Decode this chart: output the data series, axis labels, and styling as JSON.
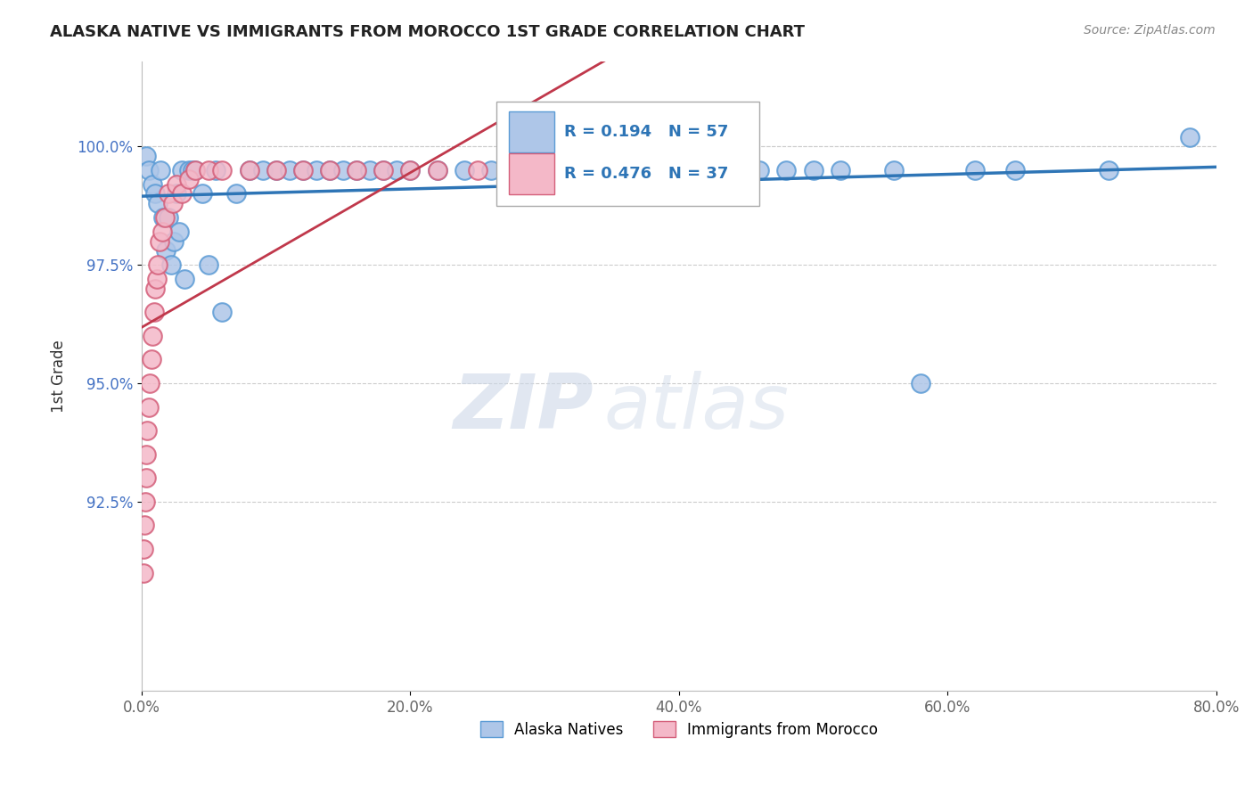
{
  "title": "ALASKA NATIVE VS IMMIGRANTS FROM MOROCCO 1ST GRADE CORRELATION CHART",
  "source_text": "Source: ZipAtlas.com",
  "ylabel": "1st Grade",
  "xlabel": "",
  "xlim": [
    0.0,
    80.0
  ],
  "ylim": [
    88.5,
    101.8
  ],
  "yticks": [
    92.5,
    95.0,
    97.5,
    100.0
  ],
  "ytick_labels": [
    "92.5%",
    "95.0%",
    "97.5%",
    "100.0%"
  ],
  "xticks": [
    0.0,
    20.0,
    40.0,
    60.0,
    80.0
  ],
  "xtick_labels": [
    "0.0%",
    "20.0%",
    "40.0%",
    "60.0%",
    "80.0%"
  ],
  "blue_color": "#aec6e8",
  "blue_edge_color": "#5b9bd5",
  "pink_color": "#f4b8c8",
  "pink_edge_color": "#d45f7a",
  "blue_line_color": "#2e75b6",
  "pink_line_color": "#c0384b",
  "watermark_zip": "ZIP",
  "watermark_atlas": "atlas",
  "legend_label_blue": "Alaska Natives",
  "legend_label_pink": "Immigrants from Morocco",
  "legend_R_blue": "R = 0.194",
  "legend_N_blue": "N = 57",
  "legend_R_pink": "R = 0.476",
  "legend_N_pink": "N = 37",
  "blue_scatter_x": [
    0.3,
    0.5,
    0.8,
    1.0,
    1.2,
    1.4,
    1.6,
    1.8,
    2.0,
    2.2,
    2.4,
    2.6,
    2.8,
    3.0,
    3.2,
    3.5,
    3.8,
    4.0,
    4.5,
    5.0,
    5.5,
    6.0,
    7.0,
    8.0,
    9.0,
    10.0,
    11.0,
    12.0,
    13.0,
    14.0,
    15.0,
    16.0,
    17.0,
    18.0,
    19.0,
    20.0,
    22.0,
    24.0,
    26.0,
    28.0,
    30.0,
    32.0,
    34.0,
    36.0,
    38.0,
    42.0,
    44.0,
    46.0,
    48.0,
    50.0,
    52.0,
    56.0,
    58.0,
    62.0,
    65.0,
    72.0,
    78.0
  ],
  "blue_scatter_y": [
    99.8,
    99.5,
    99.2,
    99.0,
    98.8,
    99.5,
    98.5,
    97.8,
    98.5,
    97.5,
    98.0,
    99.0,
    98.2,
    99.5,
    97.2,
    99.5,
    99.5,
    99.5,
    99.0,
    97.5,
    99.5,
    96.5,
    99.0,
    99.5,
    99.5,
    99.5,
    99.5,
    99.5,
    99.5,
    99.5,
    99.5,
    99.5,
    99.5,
    99.5,
    99.5,
    99.5,
    99.5,
    99.5,
    99.5,
    99.5,
    99.5,
    99.5,
    99.5,
    99.5,
    99.5,
    99.5,
    99.5,
    99.5,
    99.5,
    99.5,
    99.5,
    99.5,
    95.0,
    99.5,
    99.5,
    99.5,
    100.2
  ],
  "pink_scatter_x": [
    0.1,
    0.15,
    0.2,
    0.25,
    0.3,
    0.35,
    0.4,
    0.5,
    0.6,
    0.7,
    0.8,
    0.9,
    1.0,
    1.1,
    1.2,
    1.3,
    1.5,
    1.7,
    2.0,
    2.3,
    2.6,
    3.0,
    3.5,
    4.0,
    5.0,
    6.0,
    8.0,
    10.0,
    12.0,
    14.0,
    16.0,
    18.0,
    20.0,
    22.0,
    25.0,
    30.0,
    35.0
  ],
  "pink_scatter_y": [
    91.0,
    91.5,
    92.0,
    92.5,
    93.0,
    93.5,
    94.0,
    94.5,
    95.0,
    95.5,
    96.0,
    96.5,
    97.0,
    97.2,
    97.5,
    98.0,
    98.2,
    98.5,
    99.0,
    98.8,
    99.2,
    99.0,
    99.3,
    99.5,
    99.5,
    99.5,
    99.5,
    99.5,
    99.5,
    99.5,
    99.5,
    99.5,
    99.5,
    99.5,
    99.5,
    99.5,
    99.5
  ]
}
